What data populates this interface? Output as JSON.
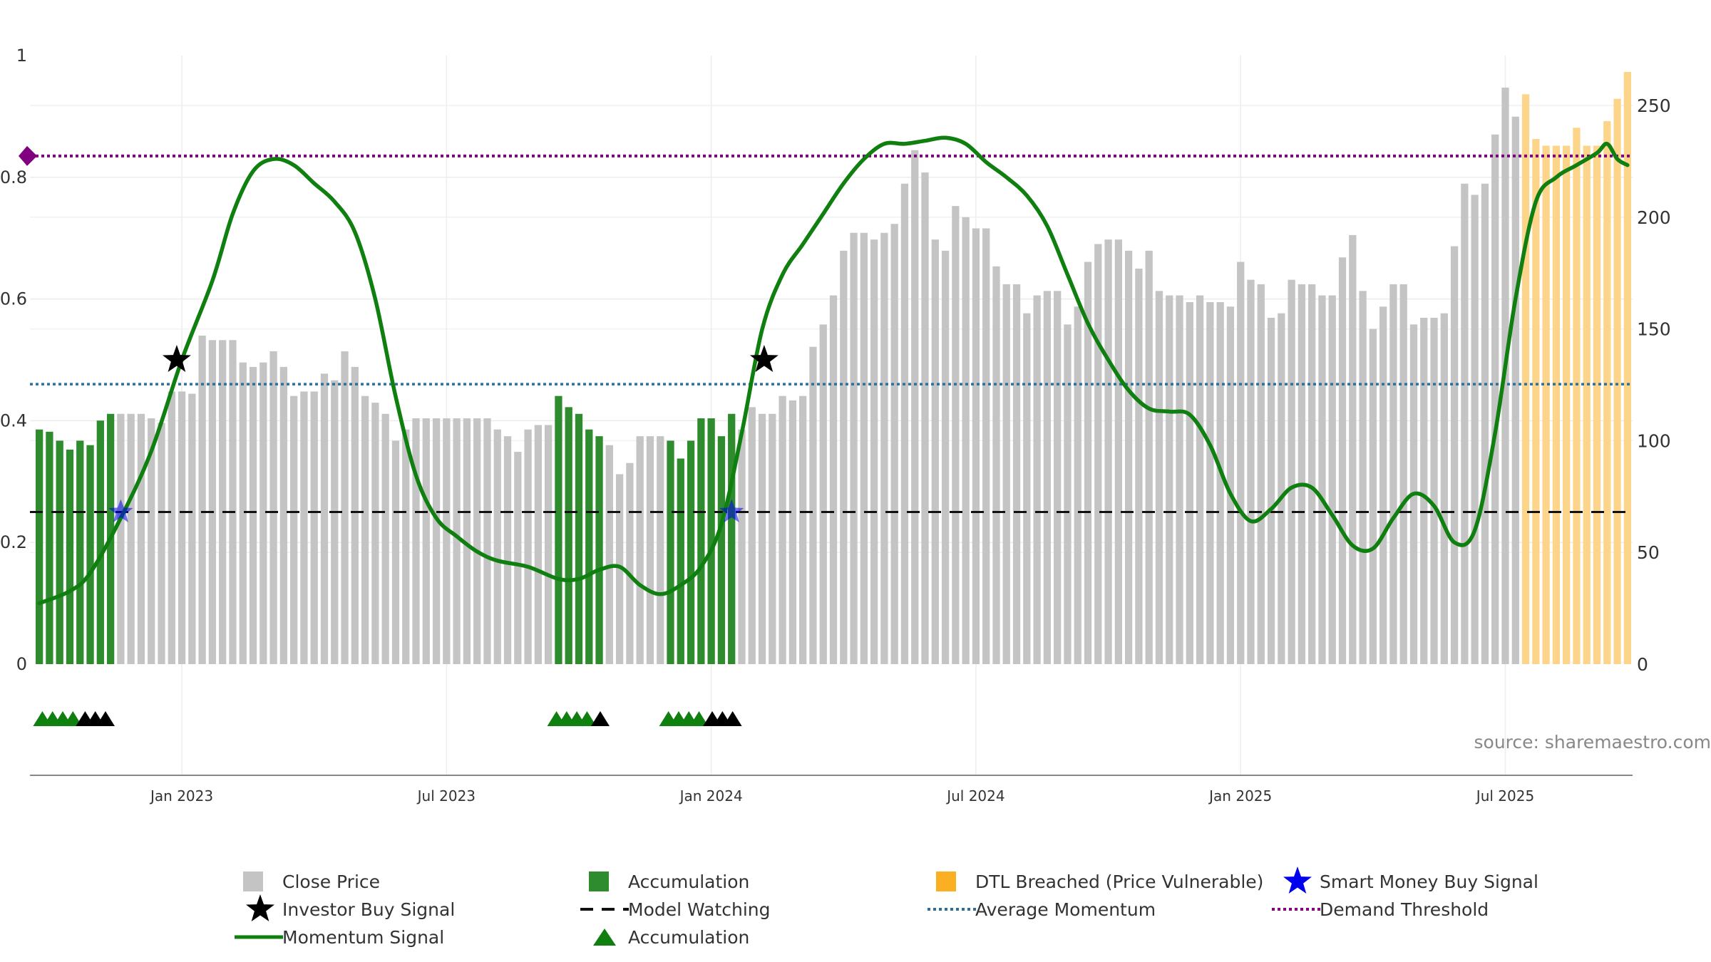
{
  "chart_data": {
    "type": "bar",
    "title": "",
    "source": "source: sharemaestro.com",
    "y_left": {
      "range": [
        0,
        1
      ],
      "ticks": [
        0,
        0.2,
        0.4,
        0.6,
        0.8,
        1
      ],
      "tick_labels": [
        "0",
        "0.2",
        "0.4",
        "0.6",
        "0.8",
        "1"
      ]
    },
    "y_right": {
      "range": [
        0,
        250
      ],
      "ticks": [
        0,
        50,
        100,
        150,
        200,
        250
      ],
      "tick_labels": [
        "0",
        "50",
        "100",
        "150",
        "200",
        "250"
      ]
    },
    "x_ticks": [
      {
        "label": "Jan 2023",
        "week": 14
      },
      {
        "label": "Jul 2023",
        "week": 40
      },
      {
        "label": "Jan 2024",
        "week": 66
      },
      {
        "label": "Jul 2024",
        "week": 92
      },
      {
        "label": "Jan 2025",
        "week": 118
      },
      {
        "label": "Jul 2025",
        "week": 144
      }
    ],
    "close_price": [
      105,
      104,
      100,
      96,
      100,
      98,
      109,
      112,
      112,
      112,
      112,
      110,
      108,
      122,
      122,
      121,
      147,
      145,
      145,
      145,
      135,
      133,
      135,
      140,
      133,
      120,
      122,
      122,
      130,
      127,
      140,
      133,
      120,
      117,
      112,
      100,
      105,
      110,
      110,
      110,
      110,
      110,
      110,
      110,
      110,
      105,
      102,
      95,
      105,
      107,
      107,
      120,
      115,
      112,
      105,
      102,
      98,
      85,
      90,
      102,
      102,
      102,
      100,
      92,
      100,
      110,
      110,
      102,
      112,
      105,
      115,
      112,
      112,
      120,
      118,
      120,
      142,
      152,
      165,
      185,
      193,
      193,
      190,
      193,
      197,
      215,
      230,
      220,
      190,
      185,
      205,
      200,
      195,
      195,
      178,
      170,
      170,
      157,
      165,
      167,
      167,
      152,
      160,
      180,
      188,
      190,
      190,
      185,
      177,
      185,
      167,
      165,
      165,
      162,
      165,
      162,
      162,
      160,
      180,
      172,
      170,
      155,
      157,
      172,
      170,
      170,
      165,
      165,
      182,
      192,
      167,
      150,
      160,
      170,
      170,
      152,
      155,
      155,
      157,
      187,
      215,
      210,
      215,
      237,
      258,
      245,
      255,
      235,
      232,
      232,
      232,
      240,
      232,
      232,
      243,
      253,
      265
    ],
    "bar_state_runs": [
      {
        "state": "accumulation",
        "from": 0,
        "to": 7
      },
      {
        "state": "close",
        "from": 8,
        "to": 50
      },
      {
        "state": "accumulation",
        "from": 51,
        "to": 55
      },
      {
        "state": "close",
        "from": 56,
        "to": 61
      },
      {
        "state": "accumulation",
        "from": 62,
        "to": 68
      },
      {
        "state": "close",
        "from": 69,
        "to": 145
      },
      {
        "state": "dtl_breached",
        "from": 146,
        "to": 156
      }
    ],
    "momentum_signal": [
      {
        "week": 0,
        "value": 0.1
      },
      {
        "week": 3,
        "value": 0.12
      },
      {
        "week": 5,
        "value": 0.15
      },
      {
        "week": 8,
        "value": 0.24
      },
      {
        "week": 11,
        "value": 0.35
      },
      {
        "week": 14,
        "value": 0.5
      },
      {
        "week": 17,
        "value": 0.63
      },
      {
        "week": 19,
        "value": 0.74
      },
      {
        "week": 21,
        "value": 0.81
      },
      {
        "week": 23,
        "value": 0.83
      },
      {
        "week": 25,
        "value": 0.82
      },
      {
        "week": 27,
        "value": 0.79
      },
      {
        "week": 29,
        "value": 0.76
      },
      {
        "week": 31,
        "value": 0.71
      },
      {
        "week": 33,
        "value": 0.6
      },
      {
        "week": 35,
        "value": 0.44
      },
      {
        "week": 37,
        "value": 0.31
      },
      {
        "week": 39,
        "value": 0.24
      },
      {
        "week": 41,
        "value": 0.21
      },
      {
        "week": 43,
        "value": 0.185
      },
      {
        "week": 45,
        "value": 0.17
      },
      {
        "week": 48,
        "value": 0.16
      },
      {
        "week": 51,
        "value": 0.14
      },
      {
        "week": 53,
        "value": 0.14
      },
      {
        "week": 55,
        "value": 0.155
      },
      {
        "week": 57,
        "value": 0.16
      },
      {
        "week": 59,
        "value": 0.13
      },
      {
        "week": 61,
        "value": 0.115
      },
      {
        "week": 63,
        "value": 0.13
      },
      {
        "week": 65,
        "value": 0.16
      },
      {
        "week": 67,
        "value": 0.23
      },
      {
        "week": 69,
        "value": 0.38
      },
      {
        "week": 71,
        "value": 0.55
      },
      {
        "week": 73,
        "value": 0.64
      },
      {
        "week": 75,
        "value": 0.69
      },
      {
        "week": 77,
        "value": 0.74
      },
      {
        "week": 79,
        "value": 0.79
      },
      {
        "week": 81,
        "value": 0.83
      },
      {
        "week": 83,
        "value": 0.855
      },
      {
        "week": 85,
        "value": 0.855
      },
      {
        "week": 87,
        "value": 0.86
      },
      {
        "week": 89,
        "value": 0.865
      },
      {
        "week": 91,
        "value": 0.855
      },
      {
        "week": 93,
        "value": 0.825
      },
      {
        "week": 95,
        "value": 0.8
      },
      {
        "week": 97,
        "value": 0.77
      },
      {
        "week": 99,
        "value": 0.72
      },
      {
        "week": 101,
        "value": 0.64
      },
      {
        "week": 103,
        "value": 0.56
      },
      {
        "week": 105,
        "value": 0.5
      },
      {
        "week": 107,
        "value": 0.45
      },
      {
        "week": 109,
        "value": 0.42
      },
      {
        "week": 111,
        "value": 0.415
      },
      {
        "week": 113,
        "value": 0.41
      },
      {
        "week": 115,
        "value": 0.36
      },
      {
        "week": 117,
        "value": 0.28
      },
      {
        "week": 119,
        "value": 0.235
      },
      {
        "week": 121,
        "value": 0.255
      },
      {
        "week": 123,
        "value": 0.29
      },
      {
        "week": 125,
        "value": 0.29
      },
      {
        "week": 127,
        "value": 0.245
      },
      {
        "week": 129,
        "value": 0.195
      },
      {
        "week": 131,
        "value": 0.19
      },
      {
        "week": 133,
        "value": 0.24
      },
      {
        "week": 135,
        "value": 0.28
      },
      {
        "week": 137,
        "value": 0.26
      },
      {
        "week": 139,
        "value": 0.2
      },
      {
        "week": 141,
        "value": 0.22
      },
      {
        "week": 143,
        "value": 0.38
      },
      {
        "week": 145,
        "value": 0.6
      },
      {
        "week": 147,
        "value": 0.76
      },
      {
        "week": 149,
        "value": 0.8
      },
      {
        "week": 151,
        "value": 0.82
      },
      {
        "week": 153,
        "value": 0.84
      },
      {
        "week": 154,
        "value": 0.855
      },
      {
        "week": 155,
        "value": 0.83
      },
      {
        "week": 156,
        "value": 0.82
      }
    ],
    "demand_threshold": 0.835,
    "average_momentum": 0.46,
    "model_watching": 0.25,
    "investor_buy_signals": [
      {
        "week": 13.5,
        "value": 0.5
      },
      {
        "week": 71.2,
        "value": 0.5
      }
    ],
    "smart_money_buy_signals": [
      {
        "week": 8,
        "value": 0.25
      },
      {
        "week": 68,
        "value": 0.25
      }
    ],
    "accumulation_markers": [
      {
        "week": 0.3,
        "color": "green"
      },
      {
        "week": 1.3,
        "color": "green"
      },
      {
        "week": 2.3,
        "color": "green"
      },
      {
        "week": 3.3,
        "color": "green"
      },
      {
        "week": 4.5,
        "color": "black"
      },
      {
        "week": 5.5,
        "color": "black"
      },
      {
        "week": 6.5,
        "color": "black"
      },
      {
        "week": 50.8,
        "color": "green"
      },
      {
        "week": 51.8,
        "color": "green"
      },
      {
        "week": 52.8,
        "color": "green"
      },
      {
        "week": 53.8,
        "color": "green"
      },
      {
        "week": 55.1,
        "color": "black"
      },
      {
        "week": 61.8,
        "color": "green"
      },
      {
        "week": 62.8,
        "color": "green"
      },
      {
        "week": 63.8,
        "color": "green"
      },
      {
        "week": 64.8,
        "color": "green"
      },
      {
        "week": 66.1,
        "color": "black"
      },
      {
        "week": 67.1,
        "color": "black"
      },
      {
        "week": 68.1,
        "color": "black"
      }
    ],
    "colors": {
      "close_price": "#c4c4c4",
      "accumulation": "#2e8b2e",
      "dtl_breached": "#fdd58a",
      "momentum": "#0f7f0f",
      "demand_threshold": "#800080",
      "average_momentum": "#2e6f9a",
      "model_watching": "#111111",
      "smart_money": "#0000ee",
      "investor_buy": "#000000"
    },
    "legend": [
      {
        "label": "Close Price",
        "marker": "square-grey"
      },
      {
        "label": "Accumulation",
        "marker": "square-green"
      },
      {
        "label": "DTL Breached (Price Vulnerable)",
        "marker": "square-orange"
      },
      {
        "label": "Smart Money Buy Signal",
        "marker": "star-blue"
      },
      {
        "label": "Investor Buy Signal",
        "marker": "star-black"
      },
      {
        "label": "Model Watching",
        "marker": "dash-black"
      },
      {
        "label": "Average Momentum",
        "marker": "dot-blue"
      },
      {
        "label": "Demand Threshold",
        "marker": "dot-purple"
      },
      {
        "label": "Momentum Signal",
        "marker": "line-green"
      },
      {
        "label": "Accumulation",
        "marker": "triangle-green"
      }
    ]
  }
}
